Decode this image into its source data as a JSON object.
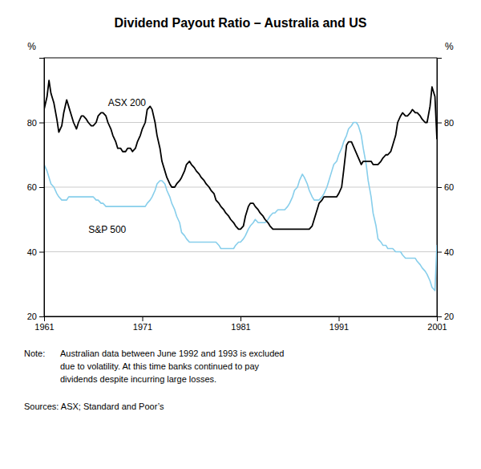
{
  "chart_data": {
    "type": "line",
    "title": "Dividend Payout Ratio – Australia and US",
    "ylabel": "%",
    "y2label": "%",
    "xlim": [
      1961,
      2001
    ],
    "xticks": [
      1961,
      1971,
      1981,
      1991,
      2001
    ],
    "ylim": [
      20,
      100
    ],
    "yticks": [
      20,
      40,
      60,
      80
    ],
    "y2lim": [
      20,
      100
    ],
    "y2ticks": [
      20,
      40,
      60,
      80
    ],
    "grid": true,
    "note_label": "Note:",
    "note_lines": [
      "Australian data between June 1992 and 1993 is excluded",
      "due to volatility. At this time banks continued to pay",
      "dividends despite incurring large losses."
    ],
    "source": "Sources: ASX; Standard and Poor’s",
    "series": [
      {
        "name": "S&P 500",
        "color": "#87CEEB",
        "x": [
          1961.0,
          1961.3,
          1961.5,
          1961.7,
          1962.0,
          1962.3,
          1962.5,
          1962.8,
          1963.0,
          1963.3,
          1963.5,
          1963.8,
          1964.0,
          1964.3,
          1964.5,
          1964.8,
          1965.0,
          1965.3,
          1965.5,
          1965.8,
          1966.0,
          1966.3,
          1966.5,
          1966.8,
          1967.0,
          1967.3,
          1967.5,
          1967.8,
          1968.0,
          1968.3,
          1968.5,
          1968.8,
          1969.0,
          1969.3,
          1969.5,
          1969.8,
          1970.0,
          1970.3,
          1970.5,
          1970.8,
          1971.0,
          1971.3,
          1971.5,
          1971.8,
          1972.0,
          1972.3,
          1972.5,
          1972.8,
          1973.0,
          1973.3,
          1973.5,
          1973.8,
          1974.0,
          1974.3,
          1974.5,
          1974.8,
          1975.0,
          1975.3,
          1975.5,
          1975.8,
          1976.0,
          1976.3,
          1976.5,
          1976.8,
          1977.0,
          1977.3,
          1977.5,
          1977.8,
          1978.0,
          1978.3,
          1978.5,
          1978.8,
          1979.0,
          1979.3,
          1979.5,
          1979.8,
          1980.0,
          1980.3,
          1980.5,
          1980.8,
          1981.0,
          1981.3,
          1981.5,
          1981.8,
          1982.0,
          1982.3,
          1982.5,
          1982.8,
          1983.0,
          1983.3,
          1983.5,
          1983.8,
          1984.0,
          1984.3,
          1984.5,
          1984.8,
          1985.0,
          1985.3,
          1985.5,
          1985.8,
          1986.0,
          1986.3,
          1986.5,
          1986.8,
          1987.0,
          1987.3,
          1987.5,
          1987.8,
          1988.0,
          1988.3,
          1988.5,
          1988.8,
          1989.0,
          1989.3,
          1989.5,
          1989.8,
          1990.0,
          1990.3,
          1990.5,
          1990.8,
          1991.0,
          1991.3,
          1991.5,
          1991.8,
          1992.0,
          1992.3,
          1992.5,
          1992.8,
          1993.0,
          1993.3,
          1993.5,
          1993.8,
          1994.0,
          1994.3,
          1994.5,
          1994.8,
          1995.0,
          1995.3,
          1995.5,
          1995.8,
          1996.0,
          1996.3,
          1996.5,
          1996.8,
          1997.0,
          1997.3,
          1997.5,
          1997.8,
          1998.0,
          1998.3,
          1998.5,
          1998.8,
          1999.0,
          1999.3,
          1999.5,
          1999.8,
          2000.0,
          2000.3,
          2000.5,
          2000.8,
          2001.0
        ],
        "values": [
          67,
          65,
          63,
          61,
          60,
          58,
          57,
          56,
          56,
          56,
          57,
          57,
          57,
          57,
          57,
          57,
          57,
          57,
          57,
          57,
          57,
          56,
          56,
          55,
          55,
          54,
          54,
          54,
          54,
          54,
          54,
          54,
          54,
          54,
          54,
          54,
          54,
          54,
          54,
          54,
          54,
          54,
          55,
          56,
          57,
          59,
          61,
          62,
          62,
          61,
          59,
          57,
          55,
          53,
          51,
          49,
          46,
          45,
          44,
          43,
          43,
          43,
          43,
          43,
          43,
          43,
          43,
          43,
          43,
          43,
          43,
          42,
          41,
          41,
          41,
          41,
          41,
          41,
          42,
          43,
          43,
          44,
          45,
          47,
          48,
          49,
          50,
          49,
          49,
          49,
          49,
          50,
          51,
          52,
          52,
          53,
          53,
          53,
          53,
          54,
          55,
          57,
          59,
          60,
          62,
          64,
          63,
          61,
          59,
          57,
          56,
          56,
          56,
          57,
          58,
          60,
          62,
          65,
          67,
          68,
          70,
          72,
          74,
          76,
          78,
          79,
          80,
          80,
          79,
          76,
          72,
          67,
          62,
          57,
          52,
          48,
          44,
          43,
          42,
          42,
          41,
          41,
          41,
          40,
          40,
          40,
          39,
          38,
          38,
          38,
          38,
          38,
          37,
          36,
          35,
          34,
          33,
          31,
          29,
          28,
          42
        ]
      },
      {
        "name": "ASX 200",
        "color": "#000000",
        "x": [
          1961.0,
          1961.3,
          1961.5,
          1961.7,
          1962.0,
          1962.3,
          1962.5,
          1962.8,
          1963.0,
          1963.3,
          1963.5,
          1963.8,
          1964.0,
          1964.3,
          1964.5,
          1964.8,
          1965.0,
          1965.3,
          1965.5,
          1965.8,
          1966.0,
          1966.3,
          1966.5,
          1966.8,
          1967.0,
          1967.3,
          1967.5,
          1967.8,
          1968.0,
          1968.3,
          1968.5,
          1968.8,
          1969.0,
          1969.3,
          1969.5,
          1969.8,
          1970.0,
          1970.3,
          1970.5,
          1970.8,
          1971.0,
          1971.3,
          1971.5,
          1971.8,
          1972.0,
          1972.3,
          1972.5,
          1972.8,
          1973.0,
          1973.3,
          1973.5,
          1973.8,
          1974.0,
          1974.3,
          1974.5,
          1974.8,
          1975.0,
          1975.3,
          1975.5,
          1975.8,
          1976.0,
          1976.3,
          1976.5,
          1976.8,
          1977.0,
          1977.3,
          1977.5,
          1977.8,
          1978.0,
          1978.3,
          1978.5,
          1978.8,
          1979.0,
          1979.3,
          1979.5,
          1979.8,
          1980.0,
          1980.3,
          1980.5,
          1980.8,
          1981.0,
          1981.3,
          1981.5,
          1981.8,
          1982.0,
          1982.3,
          1982.5,
          1982.8,
          1983.0,
          1983.3,
          1983.5,
          1983.8,
          1984.0,
          1984.3,
          1984.5,
          1984.8,
          1985.0,
          1985.3,
          1985.5,
          1985.8,
          1986.0,
          1986.3,
          1986.5,
          1986.8,
          1987.0,
          1987.3,
          1987.5,
          1987.8,
          1988.0,
          1988.3,
          1988.5,
          1988.8,
          1989.0,
          1989.3,
          1989.5,
          1989.8,
          1990.0,
          1990.3,
          1990.5,
          1990.8,
          1991.0,
          1991.3,
          1991.5,
          1991.8,
          1992.0,
          1992.3,
          1993.3,
          1993.5,
          1993.8,
          1994.0,
          1994.3,
          1994.5,
          1994.8,
          1995.0,
          1995.3,
          1995.5,
          1995.8,
          1996.0,
          1996.3,
          1996.5,
          1996.8,
          1997.0,
          1997.3,
          1997.5,
          1997.8,
          1998.0,
          1998.3,
          1998.5,
          1998.8,
          1999.0,
          1999.3,
          1999.5,
          1999.8,
          2000.0,
          2000.3,
          2000.5,
          2000.8,
          2001.0
        ],
        "values": [
          84,
          88,
          93,
          89,
          86,
          81,
          77,
          79,
          83,
          87,
          85,
          82,
          80,
          78,
          80,
          82,
          82,
          81,
          80,
          79,
          79,
          80,
          82,
          83,
          83,
          82,
          80,
          78,
          76,
          74,
          72,
          72,
          71,
          71,
          72,
          72,
          71,
          72,
          74,
          76,
          78,
          80,
          84,
          85,
          84,
          80,
          76,
          72,
          68,
          65,
          63,
          61,
          60,
          60,
          61,
          62,
          63,
          65,
          67,
          68,
          67,
          66,
          65,
          64,
          63,
          62,
          61,
          60,
          59,
          58,
          56,
          55,
          54,
          53,
          52,
          51,
          50,
          49,
          48,
          47,
          47,
          48,
          51,
          54,
          55,
          55,
          54,
          53,
          52,
          51,
          50,
          49,
          48,
          47,
          47,
          47,
          47,
          47,
          47,
          47,
          47,
          47,
          47,
          47,
          47,
          47,
          47,
          47,
          47,
          48,
          50,
          53,
          55,
          56,
          57,
          57,
          57,
          57,
          57,
          57,
          58,
          60,
          65,
          73,
          74,
          74,
          67,
          68,
          68,
          68,
          68,
          67,
          67,
          67,
          68,
          69,
          70,
          70,
          71,
          73,
          76,
          80,
          82,
          83,
          82,
          82,
          83,
          84,
          83,
          83,
          82,
          81,
          80,
          80,
          85,
          91,
          88,
          75
        ]
      }
    ]
  }
}
